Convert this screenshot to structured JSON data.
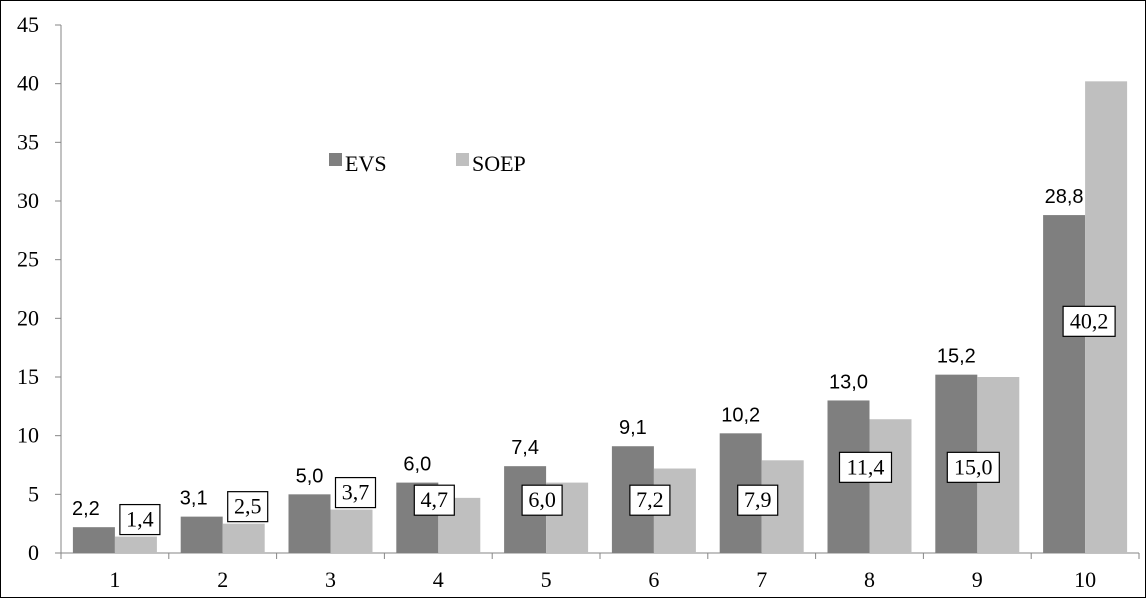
{
  "chart_data": {
    "type": "bar",
    "categories": [
      "1",
      "2",
      "3",
      "4",
      "5",
      "6",
      "7",
      "8",
      "9",
      "10"
    ],
    "series": [
      {
        "name": "EVS",
        "color": "#7f7f7f",
        "values": [
          2.2,
          3.1,
          5.0,
          6.0,
          7.4,
          9.1,
          10.2,
          13.0,
          15.2,
          28.8
        ],
        "labels": [
          "2,2",
          "3,1",
          "5,0",
          "6,0",
          "7,4",
          "9,1",
          "10,2",
          "13,0",
          "15,2",
          "28,8"
        ]
      },
      {
        "name": "SOEP",
        "color": "#bfbfbf",
        "values": [
          1.4,
          2.5,
          3.7,
          4.7,
          6.0,
          7.2,
          7.9,
          11.4,
          15.0,
          40.2
        ],
        "labels": [
          "1,4",
          "2,5",
          "3,7",
          "4,7",
          "6,0",
          "7,2",
          "7,9",
          "11,4",
          "15,0",
          "40,2"
        ]
      }
    ],
    "ylim": [
      0,
      45
    ],
    "yticks": [
      "0",
      "5",
      "10",
      "15",
      "20",
      "25",
      "30",
      "35",
      "40",
      "45"
    ],
    "legend": {
      "position": "top-left"
    },
    "grid": false
  }
}
